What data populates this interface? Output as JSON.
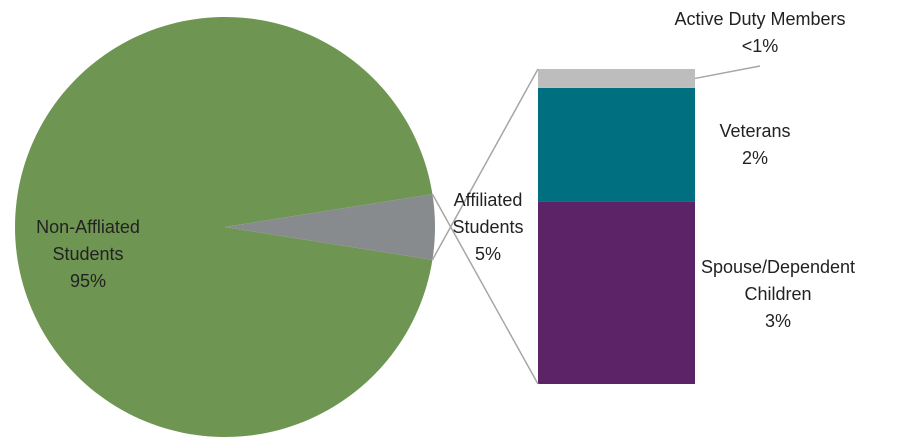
{
  "chart_data": {
    "type": "bar-of-pie",
    "pie": {
      "categories": [
        "Non-Affliated Students",
        "Affiliated Students"
      ],
      "values": [
        95,
        5
      ],
      "value_labels": [
        "95%",
        "5%"
      ],
      "colors": [
        "#6f9552",
        "#888b8d"
      ]
    },
    "bar": {
      "categories": [
        "Spouse/Dependent Children",
        "Veterans",
        "Active Duty Members"
      ],
      "values": [
        2.9,
        1.8,
        0.3
      ],
      "value_labels": [
        "3%",
        "2%",
        "<1%"
      ],
      "colors": [
        "#5c2466",
        "#006f7f",
        "#bcbdbc"
      ]
    }
  }
}
